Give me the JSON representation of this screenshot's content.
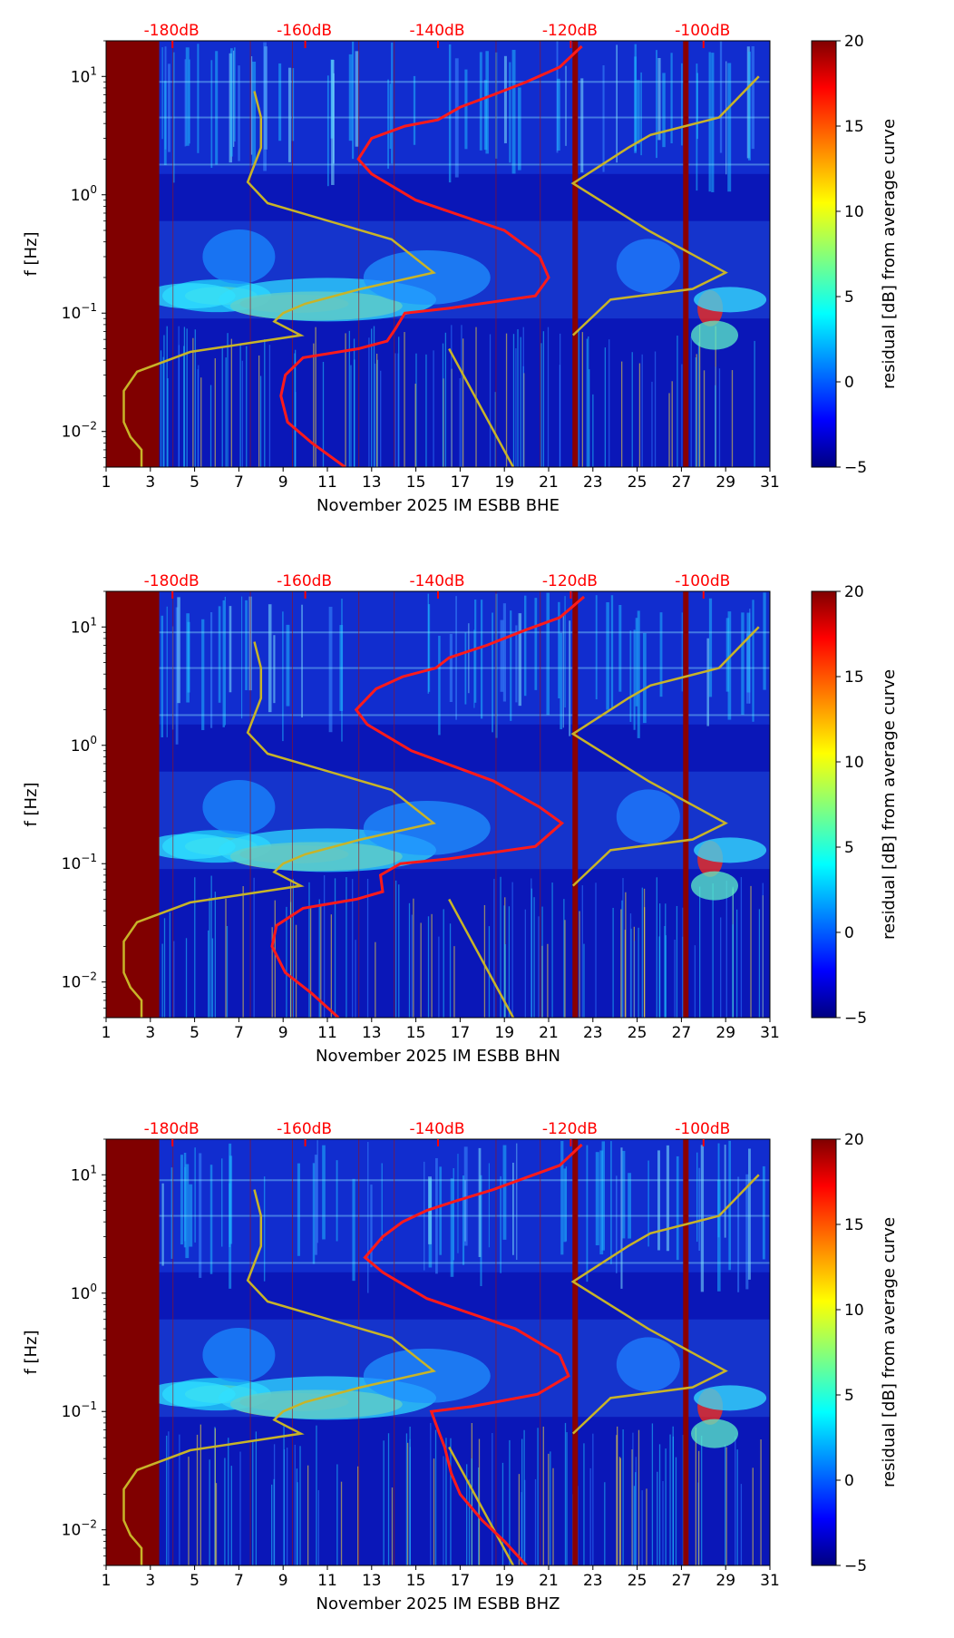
{
  "chart_data": [
    {
      "type": "heatmap",
      "title": "",
      "xlabel": "November 2025 IM ESBB  BHE",
      "ylabel": "f [Hz]",
      "colorbar_label": "residual [dB] from average curve",
      "colorbar_range": [
        -5,
        20
      ],
      "colorbar_ticks": [
        "20",
        "15",
        "10",
        "5",
        "0",
        "−5"
      ],
      "x_range": [
        1,
        31
      ],
      "x_ticks": [
        "1",
        "3",
        "5",
        "7",
        "9",
        "11",
        "13",
        "15",
        "17",
        "19",
        "21",
        "23",
        "25",
        "27",
        "29",
        "31"
      ],
      "y_range_hz": [
        0.005,
        20
      ],
      "y_ticks": [
        {
          "exp": "1",
          "label": "10"
        },
        {
          "exp": "0",
          "label": "10"
        },
        {
          "exp": "−1",
          "label": "10"
        },
        {
          "exp": "−2",
          "label": "10"
        }
      ],
      "top_axis": {
        "labels": [
          "-180dB",
          "-160dB",
          "-140dB",
          "-120dB",
          "-100dB"
        ],
        "day_positions": [
          4,
          10,
          16,
          22,
          28
        ]
      },
      "saturated_until_day": 3.4,
      "annotation_lines": [
        {
          "name": "yellow-model-curve",
          "points": [
            [
              2.6,
              0.005
            ],
            [
              2.6,
              0.007
            ],
            [
              2.1,
              0.009
            ],
            [
              1.8,
              0.012
            ],
            [
              1.8,
              0.022
            ],
            [
              2.4,
              0.032
            ],
            [
              4.8,
              0.047
            ],
            [
              9.8,
              0.065
            ],
            [
              8.6,
              0.085
            ],
            [
              9.0,
              0.1
            ],
            [
              10.0,
              0.12
            ],
            [
              12.5,
              0.16
            ],
            [
              15.8,
              0.22
            ],
            [
              13.9,
              0.42
            ],
            [
              8.3,
              0.85
            ],
            [
              7.4,
              1.28
            ],
            [
              8.0,
              2.5
            ],
            [
              8.0,
              4.5
            ],
            [
              7.7,
              7.5
            ],
            [
              16.5,
              0.05
            ],
            [
              19.4,
              0.005
            ]
          ]
        },
        {
          "name": "yellow-model-curve-right",
          "points": [
            [
              22.1,
              0.065
            ],
            [
              23.8,
              0.13
            ],
            [
              27.5,
              0.16
            ],
            [
              29.0,
              0.22
            ],
            [
              25.5,
              0.5
            ],
            [
              22.1,
              1.25
            ],
            [
              24.6,
              2.5
            ],
            [
              25.6,
              3.2
            ],
            [
              28.7,
              4.5
            ],
            [
              30.5,
              10.0
            ]
          ]
        },
        {
          "name": "red-mean-curve",
          "points": [
            [
              11.8,
              0.005
            ],
            [
              10.3,
              0.008
            ],
            [
              9.2,
              0.012
            ],
            [
              8.9,
              0.02
            ],
            [
              9.1,
              0.03
            ],
            [
              9.9,
              0.042
            ],
            [
              12.4,
              0.05
            ],
            [
              13.7,
              0.058
            ],
            [
              14.1,
              0.075
            ],
            [
              14.5,
              0.1
            ],
            [
              16.5,
              0.11
            ],
            [
              20.4,
              0.14
            ],
            [
              21.0,
              0.2
            ],
            [
              20.6,
              0.3
            ],
            [
              19.0,
              0.5
            ],
            [
              15.0,
              0.9
            ],
            [
              13.0,
              1.5
            ],
            [
              12.4,
              2.0
            ],
            [
              13.0,
              3.0
            ],
            [
              14.5,
              3.8
            ],
            [
              16.0,
              4.3
            ],
            [
              17.0,
              5.5
            ],
            [
              18.5,
              7.0
            ],
            [
              20.0,
              9.0
            ],
            [
              21.5,
              12.0
            ],
            [
              22.5,
              18.0
            ]
          ]
        }
      ]
    },
    {
      "type": "heatmap",
      "title": "",
      "xlabel": "November 2025 IM ESBB  BHN",
      "ylabel": "f [Hz]",
      "colorbar_label": "residual [dB] from average curve",
      "colorbar_range": [
        -5,
        20
      ],
      "colorbar_ticks": [
        "20",
        "15",
        "10",
        "5",
        "0",
        "−5"
      ],
      "x_range": [
        1,
        31
      ],
      "x_ticks": [
        "1",
        "3",
        "5",
        "7",
        "9",
        "11",
        "13",
        "15",
        "17",
        "19",
        "21",
        "23",
        "25",
        "27",
        "29",
        "31"
      ],
      "y_range_hz": [
        0.005,
        20
      ],
      "y_ticks": [
        {
          "exp": "1",
          "label": "10"
        },
        {
          "exp": "0",
          "label": "10"
        },
        {
          "exp": "−1",
          "label": "10"
        },
        {
          "exp": "−2",
          "label": "10"
        }
      ],
      "top_axis": {
        "labels": [
          "-180dB",
          "-160dB",
          "-140dB",
          "-120dB",
          "-100dB"
        ],
        "day_positions": [
          4,
          10,
          16,
          22,
          28
        ]
      },
      "saturated_until_day": 3.4,
      "annotation_lines": [
        {
          "name": "yellow-model-curve",
          "points": [
            [
              2.6,
              0.005
            ],
            [
              2.6,
              0.007
            ],
            [
              2.1,
              0.009
            ],
            [
              1.8,
              0.012
            ],
            [
              1.8,
              0.022
            ],
            [
              2.4,
              0.032
            ],
            [
              4.8,
              0.047
            ],
            [
              9.8,
              0.065
            ],
            [
              8.6,
              0.085
            ],
            [
              9.0,
              0.1
            ],
            [
              10.0,
              0.12
            ],
            [
              12.5,
              0.16
            ],
            [
              15.8,
              0.22
            ],
            [
              13.9,
              0.42
            ],
            [
              8.3,
              0.85
            ],
            [
              7.4,
              1.28
            ],
            [
              8.0,
              2.5
            ],
            [
              8.0,
              4.5
            ],
            [
              7.7,
              7.5
            ],
            [
              16.5,
              0.05
            ],
            [
              19.4,
              0.005
            ]
          ]
        },
        {
          "name": "yellow-model-curve-right",
          "points": [
            [
              22.1,
              0.065
            ],
            [
              23.8,
              0.13
            ],
            [
              27.5,
              0.16
            ],
            [
              29.0,
              0.22
            ],
            [
              25.5,
              0.5
            ],
            [
              22.1,
              1.25
            ],
            [
              24.6,
              2.5
            ],
            [
              25.6,
              3.2
            ],
            [
              28.7,
              4.5
            ],
            [
              30.5,
              10.0
            ]
          ]
        },
        {
          "name": "red-mean-curve",
          "points": [
            [
              11.5,
              0.005
            ],
            [
              10.3,
              0.008
            ],
            [
              9.1,
              0.012
            ],
            [
              8.5,
              0.02
            ],
            [
              8.7,
              0.03
            ],
            [
              9.9,
              0.042
            ],
            [
              12.3,
              0.05
            ],
            [
              13.5,
              0.058
            ],
            [
              13.4,
              0.08
            ],
            [
              14.3,
              0.1
            ],
            [
              16.5,
              0.11
            ],
            [
              20.4,
              0.14
            ],
            [
              21.6,
              0.22
            ],
            [
              20.6,
              0.3
            ],
            [
              18.5,
              0.5
            ],
            [
              14.8,
              0.9
            ],
            [
              12.8,
              1.5
            ],
            [
              12.3,
              2.0
            ],
            [
              13.2,
              3.0
            ],
            [
              14.4,
              3.8
            ],
            [
              15.9,
              4.5
            ],
            [
              16.5,
              5.5
            ],
            [
              18.2,
              7.0
            ],
            [
              20.0,
              9.5
            ],
            [
              21.5,
              12.0
            ],
            [
              22.6,
              18.0
            ]
          ]
        }
      ]
    },
    {
      "type": "heatmap",
      "title": "",
      "xlabel": "November 2025 IM ESBB  BHZ",
      "ylabel": "f [Hz]",
      "colorbar_label": "residual [dB] from average curve",
      "colorbar_range": [
        -5,
        20
      ],
      "colorbar_ticks": [
        "20",
        "15",
        "10",
        "5",
        "0",
        "−5"
      ],
      "x_range": [
        1,
        31
      ],
      "x_ticks": [
        "1",
        "3",
        "5",
        "7",
        "9",
        "11",
        "13",
        "15",
        "17",
        "19",
        "21",
        "23",
        "25",
        "27",
        "29",
        "31"
      ],
      "y_range_hz": [
        0.005,
        20
      ],
      "y_ticks": [
        {
          "exp": "1",
          "label": "10"
        },
        {
          "exp": "0",
          "label": "10"
        },
        {
          "exp": "−1",
          "label": "10"
        },
        {
          "exp": "−2",
          "label": "10"
        }
      ],
      "top_axis": {
        "labels": [
          "-180dB",
          "-160dB",
          "-140dB",
          "-120dB",
          "-100dB"
        ],
        "day_positions": [
          4,
          10,
          16,
          22,
          28
        ]
      },
      "saturated_until_day": 3.4,
      "annotation_lines": [
        {
          "name": "yellow-model-curve",
          "points": [
            [
              2.6,
              0.005
            ],
            [
              2.6,
              0.007
            ],
            [
              2.1,
              0.009
            ],
            [
              1.8,
              0.012
            ],
            [
              1.8,
              0.022
            ],
            [
              2.4,
              0.032
            ],
            [
              4.8,
              0.047
            ],
            [
              9.8,
              0.065
            ],
            [
              8.6,
              0.085
            ],
            [
              9.0,
              0.1
            ],
            [
              10.0,
              0.12
            ],
            [
              12.5,
              0.16
            ],
            [
              15.8,
              0.22
            ],
            [
              13.9,
              0.42
            ],
            [
              8.3,
              0.85
            ],
            [
              7.4,
              1.28
            ],
            [
              8.0,
              2.5
            ],
            [
              8.0,
              4.5
            ],
            [
              7.7,
              7.5
            ],
            [
              16.5,
              0.05
            ],
            [
              19.4,
              0.005
            ]
          ]
        },
        {
          "name": "yellow-model-curve-right",
          "points": [
            [
              22.1,
              0.065
            ],
            [
              23.8,
              0.13
            ],
            [
              27.5,
              0.16
            ],
            [
              29.0,
              0.22
            ],
            [
              25.5,
              0.5
            ],
            [
              22.1,
              1.25
            ],
            [
              24.6,
              2.5
            ],
            [
              25.6,
              3.2
            ],
            [
              28.7,
              4.5
            ],
            [
              30.5,
              10.0
            ]
          ]
        },
        {
          "name": "red-mean-curve",
          "points": [
            [
              20.0,
              0.005
            ],
            [
              19.0,
              0.008
            ],
            [
              18.0,
              0.012
            ],
            [
              17.0,
              0.02
            ],
            [
              16.6,
              0.03
            ],
            [
              16.3,
              0.05
            ],
            [
              16.0,
              0.07
            ],
            [
              15.7,
              0.1
            ],
            [
              17.5,
              0.11
            ],
            [
              20.5,
              0.14
            ],
            [
              21.9,
              0.2
            ],
            [
              21.5,
              0.3
            ],
            [
              19.5,
              0.5
            ],
            [
              15.5,
              0.9
            ],
            [
              13.5,
              1.5
            ],
            [
              12.7,
              2.0
            ],
            [
              13.5,
              3.0
            ],
            [
              14.4,
              4.0
            ],
            [
              15.5,
              5.0
            ],
            [
              16.8,
              6.0
            ],
            [
              18.5,
              7.5
            ],
            [
              20.0,
              9.5
            ],
            [
              21.5,
              12.0
            ],
            [
              22.5,
              18.0
            ]
          ]
        }
      ]
    }
  ]
}
